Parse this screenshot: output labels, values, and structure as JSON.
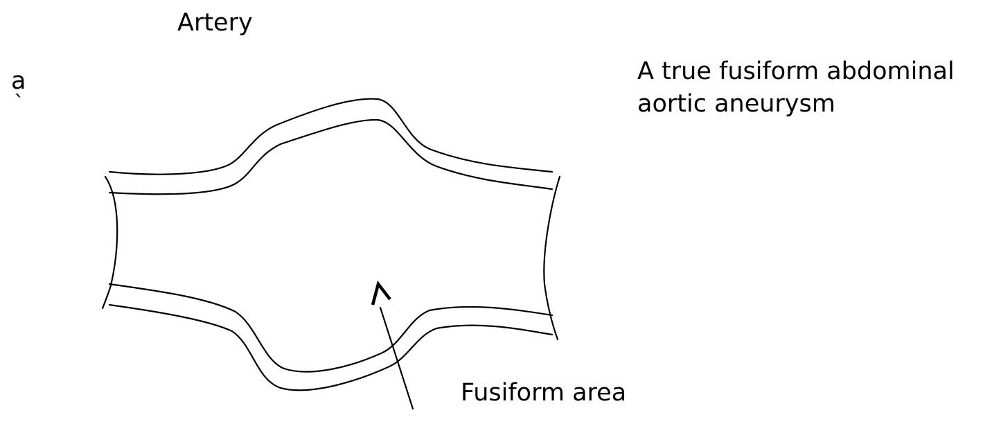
{
  "title": "Artery",
  "panel_letter": "a",
  "panel_tick": "`",
  "caption": {
    "line1": "A true fusiform abdominal",
    "line2": "aortic aneurysm"
  },
  "annotation": "Fusiform area",
  "colors": {
    "stroke": "#000000",
    "background": "#ffffff"
  }
}
